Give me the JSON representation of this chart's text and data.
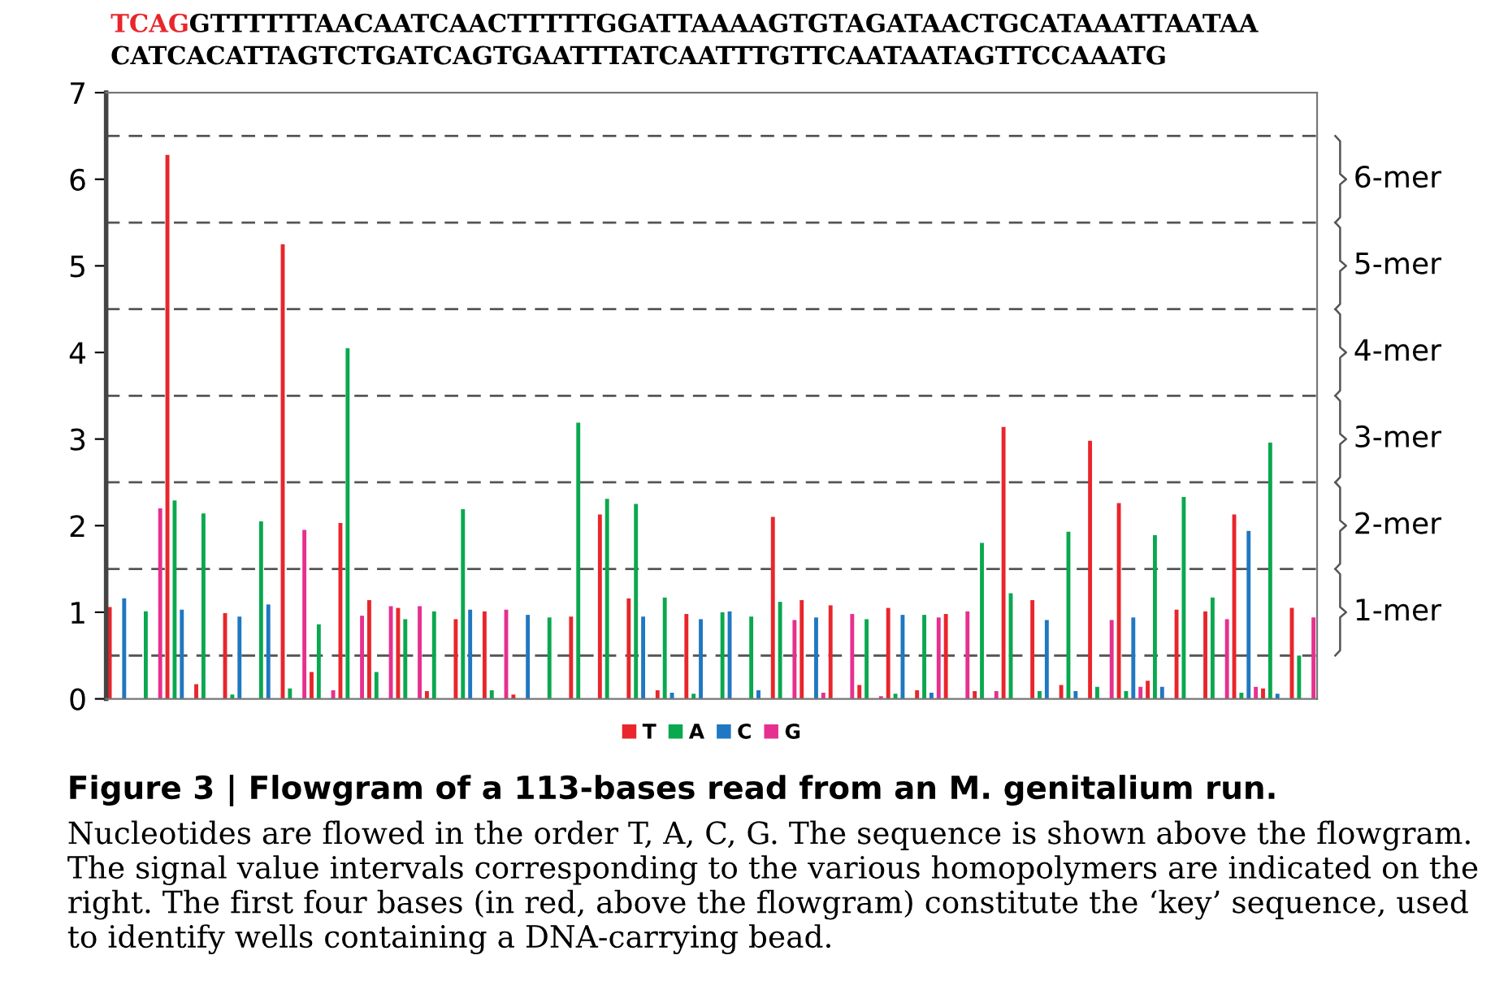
{
  "chart_data": {
    "type": "bar",
    "title": "TCAGGTTTTTTAACAATCAACTTTTTGGATTAAAAGTGTAGATAACTGCATAAATTAATAA\nCATCACATTAGTCTGATCAGTGAATTTATCAATTTGTTCAATAATAGTTCCAAATG",
    "categories": [
      null,
      null,
      null,
      null,
      null,
      null,
      null,
      null,
      null,
      null,
      null,
      null,
      null,
      null,
      null,
      null,
      null,
      null,
      null,
      null,
      null,
      null,
      null,
      null,
      null,
      null,
      null,
      null,
      null,
      null,
      null,
      null,
      null,
      null,
      null,
      null,
      null,
      null,
      null,
      null,
      null,
      null
    ],
    "series": [
      {
        "name": "T",
        "color": "#e8262b",
        "values": [
          1.06,
          0,
          6.28,
          0.17,
          0.99,
          0,
          5.25,
          0.31,
          2.03,
          1.14,
          1.05,
          0.09,
          0.92,
          1.01,
          0.05,
          0,
          0.95,
          2.13,
          1.16,
          0.1,
          0.98,
          0,
          0,
          2.1,
          1.14,
          1.08,
          0.16,
          1.05,
          0.1,
          0.98,
          0.09,
          3.14,
          1.14,
          0.16,
          2.98,
          2.26,
          0.21,
          1.03,
          1.01,
          2.13,
          0.12,
          1.05
        ]
      },
      {
        "name": "A",
        "color": "#0aa84f",
        "values": [
          0,
          1.01,
          2.29,
          2.14,
          0.05,
          2.05,
          0.12,
          0.86,
          4.05,
          0.31,
          0.92,
          1.01,
          2.19,
          0.1,
          0,
          0.94,
          3.19,
          2.31,
          2.25,
          1.17,
          0.06,
          1.0,
          0.95,
          1.12,
          0,
          0,
          0.92,
          0.06,
          0.97,
          0,
          1.8,
          1.22,
          0.09,
          1.93,
          0.14,
          0.09,
          1.89,
          2.33,
          1.17,
          0.07,
          2.96,
          0.5
        ]
      },
      {
        "name": "C",
        "color": "#1f78c1",
        "values": [
          1.16,
          0,
          1.03,
          0,
          0.95,
          1.09,
          0,
          0,
          0,
          0,
          0,
          0,
          1.03,
          0,
          0.97,
          0,
          0,
          0,
          0.95,
          0.07,
          0.92,
          1.01,
          0.1,
          0,
          0.94,
          0,
          0,
          0.97,
          0.07,
          0,
          0,
          0,
          0.91,
          0.09,
          0,
          0.94,
          0.14,
          0,
          0,
          1.94,
          0.06,
          0
        ]
      },
      {
        "name": "G",
        "color": "#e6308f",
        "values": [
          0,
          2.2,
          0,
          0,
          0,
          0,
          1.95,
          0.1,
          0.96,
          1.07,
          1.07,
          0,
          0,
          1.03,
          0,
          0,
          0,
          0,
          0,
          0,
          0,
          0,
          0,
          0.91,
          0.07,
          0.98,
          0.03,
          0,
          0.94,
          1.01,
          0.09,
          0,
          0,
          0,
          0.91,
          0.14,
          0,
          0,
          0.92,
          0.14,
          0,
          0.94
        ]
      }
    ],
    "ylim": [
      0,
      7
    ],
    "yticks": [
      0,
      1,
      2,
      3,
      4,
      5,
      6,
      7
    ],
    "tick_labels": "y",
    "grid": false,
    "legend": "bottom",
    "ref_lines": [
      {
        "axis": "y",
        "value": 0.5,
        "line_style": "dashed",
        "color": "#555555"
      },
      {
        "axis": "y",
        "value": 1.5,
        "line_style": "dashed",
        "color": "#555555"
      },
      {
        "axis": "y",
        "value": 2.5,
        "line_style": "dashed",
        "color": "#555555"
      },
      {
        "axis": "y",
        "value": 3.5,
        "line_style": "dashed",
        "color": "#555555"
      },
      {
        "axis": "y",
        "value": 4.5,
        "line_style": "dashed",
        "color": "#555555"
      },
      {
        "axis": "y",
        "value": 5.5,
        "line_style": "dashed",
        "color": "#555555"
      },
      {
        "axis": "y",
        "value": 6.5,
        "line_style": "dashed",
        "color": "#555555"
      }
    ],
    "annotations": [
      "1-mer",
      "2-mer",
      "3-mer",
      "4-mer",
      "5-mer",
      "6-mer",
      "Figure 3 | Flowgram of a 113-bases read from an M. genitalium run.",
      "Nucleotides are flowed in the order T, A, C, G. The sequence is shown above the flowgram. The signal value intervals corresponding to the various homopolymers are indicated on the right. The first four bases (in red, above the flowgram) constitute the ‘key’ sequence, used to identify wells containing a DNA-carrying bead."
    ]
  }
}
